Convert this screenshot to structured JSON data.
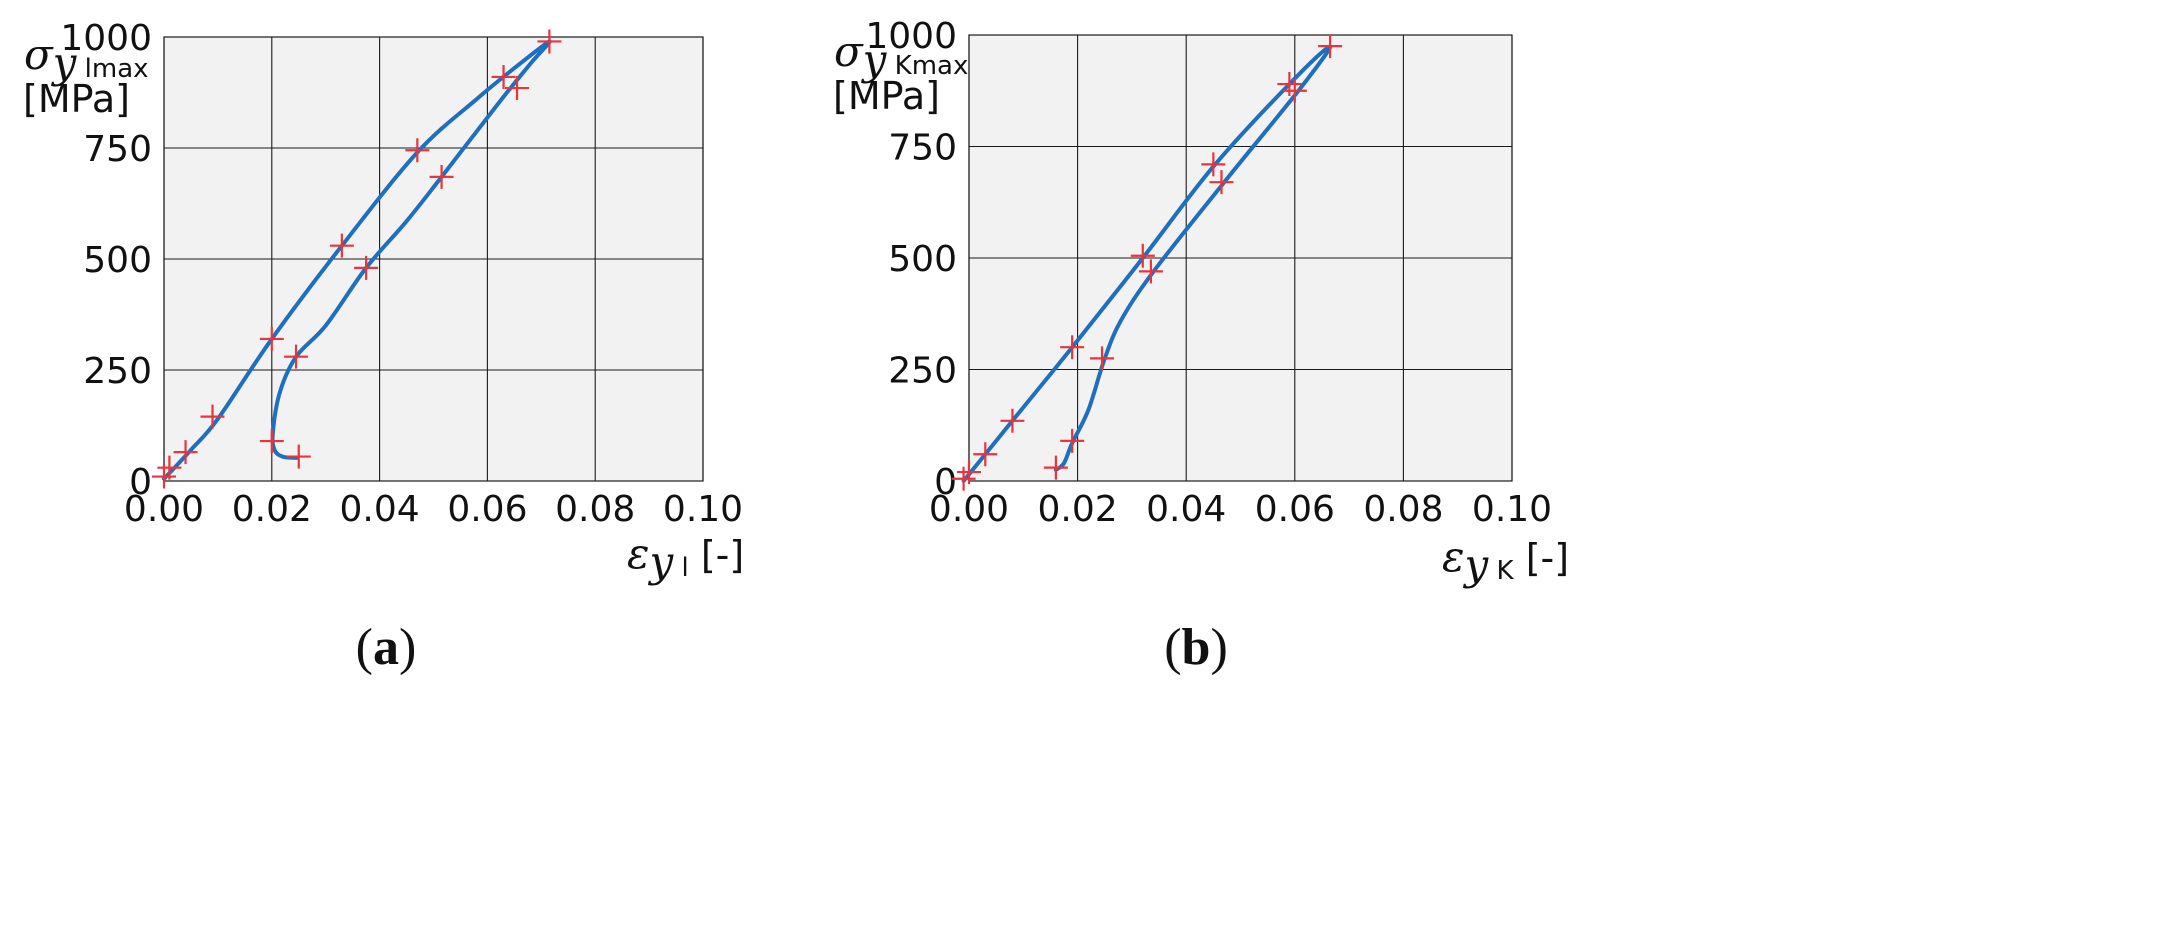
{
  "chart_data": [
    {
      "type": "line",
      "panel_label": "a",
      "xlabel": {
        "symbol": "ε",
        "sub_italic": "y",
        "sub": " l",
        "unit": " [-]"
      },
      "ylabel": {
        "symbol": "σ",
        "sub_italic": "y",
        "sub": " lmax",
        "unit": "[MPa]"
      },
      "xlim": [
        0,
        0.1
      ],
      "ylim": [
        0,
        1000
      ],
      "x_ticks": [
        0,
        0.02,
        0.04,
        0.06,
        0.08,
        0.1
      ],
      "x_tick_labels": [
        "0.00",
        "0.02",
        "0.04",
        "0.06",
        "0.08",
        "0.10"
      ],
      "y_ticks": [
        0,
        250,
        500,
        750,
        1000
      ],
      "y_tick_labels": [
        "0",
        "250",
        "500",
        "750",
        "1000"
      ],
      "grid": true,
      "colors": {
        "curve": "#1f6fbf",
        "marker": "#e8343a",
        "plot_bg": "#f2f2f2",
        "grid": "#1a1a1a"
      },
      "series": [
        {
          "curve": [
            [
              0.0,
              5
            ],
            [
              0.005,
              70
            ],
            [
              0.01,
              140
            ],
            [
              0.02,
              320
            ],
            [
              0.033,
              530
            ],
            [
              0.047,
              740
            ],
            [
              0.058,
              860
            ],
            [
              0.065,
              930
            ],
            [
              0.0715,
              990
            ],
            [
              0.068,
              940
            ],
            [
              0.062,
              850
            ],
            [
              0.0515,
              685
            ],
            [
              0.045,
              585
            ],
            [
              0.0375,
              480
            ],
            [
              0.03,
              350
            ],
            [
              0.0245,
              280
            ],
            [
              0.0215,
              200
            ],
            [
              0.0202,
              110
            ],
            [
              0.0205,
              70
            ],
            [
              0.022,
              55
            ],
            [
              0.0245,
              52
            ]
          ]
        },
        {
          "markers": [
            [
              0.0,
              10
            ],
            [
              0.001,
              30
            ],
            [
              0.004,
              65
            ],
            [
              0.009,
              145
            ],
            [
              0.02,
              320
            ],
            [
              0.033,
              530
            ],
            [
              0.047,
              745
            ],
            [
              0.063,
              910
            ],
            [
              0.0715,
              990
            ],
            [
              0.0655,
              885
            ],
            [
              0.0515,
              685
            ],
            [
              0.0375,
              480
            ],
            [
              0.0245,
              280
            ],
            [
              0.02,
              90
            ],
            [
              0.025,
              55
            ]
          ]
        }
      ]
    },
    {
      "type": "line",
      "panel_label": "b",
      "xlabel": {
        "symbol": "ε",
        "sub_italic": "y",
        "sub": " K",
        "unit": " [-]"
      },
      "ylabel": {
        "symbol": "σ",
        "sub_italic": "y",
        "sub": " Kmax",
        "unit": "[MPa]"
      },
      "xlim": [
        0,
        0.1
      ],
      "ylim": [
        0,
        1000
      ],
      "x_ticks": [
        0,
        0.02,
        0.04,
        0.06,
        0.08,
        0.1
      ],
      "x_tick_labels": [
        "0.00",
        "0.02",
        "0.04",
        "0.06",
        "0.08",
        "0.10"
      ],
      "y_ticks": [
        0,
        250,
        500,
        750,
        1000
      ],
      "y_tick_labels": [
        "0",
        "250",
        "500",
        "750",
        "1000"
      ],
      "grid": true,
      "colors": {
        "curve": "#1f6fbf",
        "marker": "#e8343a",
        "plot_bg": "#f2f2f2",
        "grid": "#1a1a1a"
      },
      "series": [
        {
          "curve": [
            [
              -0.001,
              0
            ],
            [
              0.008,
              135
            ],
            [
              0.019,
              300
            ],
            [
              0.032,
              500
            ],
            [
              0.045,
              705
            ],
            [
              0.059,
              890
            ],
            [
              0.0665,
              975
            ],
            [
              0.061,
              880
            ],
            [
              0.047,
              670
            ],
            [
              0.034,
              470
            ],
            [
              0.028,
              360
            ],
            [
              0.025,
              275
            ],
            [
              0.022,
              160
            ],
            [
              0.019,
              85
            ],
            [
              0.0175,
              40
            ],
            [
              0.016,
              25
            ]
          ]
        },
        {
          "markers": [
            [
              -0.001,
              5
            ],
            [
              0.0,
              20
            ],
            [
              0.003,
              60
            ],
            [
              0.008,
              135
            ],
            [
              0.019,
              300
            ],
            [
              0.032,
              505
            ],
            [
              0.045,
              710
            ],
            [
              0.059,
              890
            ],
            [
              0.0665,
              975
            ],
            [
              0.06,
              875
            ],
            [
              0.0465,
              670
            ],
            [
              0.0335,
              470
            ],
            [
              0.0245,
              275
            ],
            [
              0.019,
              90
            ],
            [
              0.016,
              30
            ]
          ]
        }
      ]
    }
  ]
}
